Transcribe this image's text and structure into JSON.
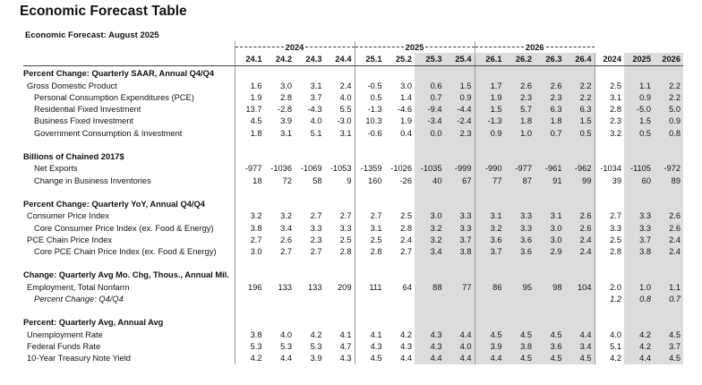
{
  "header": {
    "title": "Economic Forecast Table",
    "subtitle": "Economic Forecast: August 2025"
  },
  "table": {
    "year_groups": [
      "2024",
      "2025",
      "2026"
    ],
    "columns": [
      "24.1",
      "24.2",
      "24.3",
      "24.4",
      "25.1",
      "25.2",
      "25.3",
      "25.4",
      "26.1",
      "26.2",
      "26.3",
      "26.4",
      "2024",
      "2025",
      "2026"
    ],
    "sections": [
      {
        "title": "Percent Change: Quarterly SAAR, Annual Q4/Q4",
        "rows": [
          {
            "label": "Gross Domestic Product",
            "values": [
              "1.6",
              "3.0",
              "3.1",
              "2.4",
              "-0.5",
              "3.0",
              "0.6",
              "1.5",
              "1.7",
              "2.6",
              "2.6",
              "2.2",
              "2.5",
              "1.1",
              "2.2"
            ]
          },
          {
            "label": "Personal Consumption Expenditures (PCE)",
            "values": [
              "1.9",
              "2.8",
              "3.7",
              "4.0",
              "0.5",
              "1.4",
              "0.7",
              "0.9",
              "1.9",
              "2.3",
              "2.3",
              "2.2",
              "3.1",
              "0.9",
              "2.2"
            ]
          },
          {
            "label": "Residential Fixed Investment",
            "values": [
              "13.7",
              "-2.8",
              "-4.3",
              "5.5",
              "-1.3",
              "-4.6",
              "-9.4",
              "-4.4",
              "1.5",
              "5.7",
              "6.3",
              "6.3",
              "2.8",
              "-5.0",
              "5.0"
            ]
          },
          {
            "label": "Business Fixed Investment",
            "values": [
              "4.5",
              "3.9",
              "4.0",
              "-3.0",
              "10.3",
              "1.9",
              "-3.4",
              "-2.4",
              "-1.3",
              "1.8",
              "1.8",
              "1.5",
              "2.3",
              "1.5",
              "0.9"
            ]
          },
          {
            "label": "Government Consumption & Investment",
            "values": [
              "1.8",
              "3.1",
              "5.1",
              "3.1",
              "-0.6",
              "0.4",
              "0.0",
              "2.3",
              "0.9",
              "1.0",
              "0.7",
              "0.5",
              "3.2",
              "0.5",
              "0.8"
            ]
          }
        ]
      },
      {
        "title": "Billions of Chained 2017$",
        "rows": [
          {
            "label": "Net Exports",
            "values": [
              "-977",
              "-1036",
              "-1069",
              "-1053",
              "-1359",
              "-1026",
              "-1035",
              "-999",
              "-990",
              "-977",
              "-961",
              "-962",
              "-1034",
              "-1105",
              "-972"
            ]
          },
          {
            "label": "Change in Business Inventories",
            "values": [
              "18",
              "72",
              "58",
              "9",
              "160",
              "-26",
              "40",
              "67",
              "77",
              "87",
              "91",
              "99",
              "39",
              "60",
              "89"
            ]
          }
        ]
      },
      {
        "title": "Percent Change: Quarterly YoY, Annual Q4/Q4",
        "rows": [
          {
            "label": "Consumer Price Index",
            "values": [
              "3.2",
              "3.2",
              "2.7",
              "2.7",
              "2.7",
              "2.5",
              "3.0",
              "3.3",
              "3.1",
              "3.3",
              "3.1",
              "2.6",
              "2.7",
              "3.3",
              "2.6"
            ]
          },
          {
            "label": "Core Consumer Price Index (ex. Food & Energy)",
            "values": [
              "3.8",
              "3.4",
              "3.3",
              "3.3",
              "3.1",
              "2.8",
              "3.2",
              "3.3",
              "3.2",
              "3.3",
              "3.0",
              "2.6",
              "3.3",
              "3.3",
              "2.6"
            ]
          },
          {
            "label": "PCE Chain Price Index",
            "values": [
              "2.7",
              "2.6",
              "2.3",
              "2.5",
              "2.5",
              "2.4",
              "3.2",
              "3.7",
              "3.6",
              "3.6",
              "3.0",
              "2.4",
              "2.5",
              "3.7",
              "2.4"
            ]
          },
          {
            "label": "Core PCE Chain Price Index (ex. Food & Energy)",
            "values": [
              "3.0",
              "2.7",
              "2.7",
              "2.8",
              "2.8",
              "2.7",
              "3.4",
              "3.8",
              "3.7",
              "3.6",
              "2.9",
              "2.4",
              "2.8",
              "3.8",
              "2.4"
            ]
          }
        ]
      },
      {
        "title": "Change: Quarterly Avg Mo. Chg, Thous., Annual Mil.",
        "rows": [
          {
            "label": "Employment, Total Nonfarm",
            "values": [
              "196",
              "133",
              "133",
              "209",
              "111",
              "64",
              "88",
              "77",
              "86",
              "95",
              "98",
              "104",
              "2.0",
              "1.0",
              "1.1"
            ]
          },
          {
            "label": "Percent Change: Q4/Q4",
            "values": [
              null,
              null,
              null,
              null,
              null,
              null,
              null,
              null,
              null,
              null,
              null,
              null,
              "1.2",
              "0.8",
              "0.7"
            ]
          }
        ]
      },
      {
        "title": "Percent: Quarterly Avg, Annual Avg",
        "rows": [
          {
            "label": "Unemployment Rate",
            "values": [
              "3.8",
              "4.0",
              "4.2",
              "4.1",
              "4.1",
              "4.2",
              "4.3",
              "4.4",
              "4.5",
              "4.5",
              "4.5",
              "4.4",
              "4.0",
              "4.2",
              "4.5"
            ]
          },
          {
            "label": "Federal Funds Rate",
            "values": [
              "5.3",
              "5.3",
              "5.3",
              "4.7",
              "4.3",
              "4.3",
              "4.3",
              "4.0",
              "3.9",
              "3.8",
              "3.6",
              "3.4",
              "5.1",
              "4.2",
              "3.7"
            ]
          },
          {
            "label": "10-Year Treasury Note Yield",
            "values": [
              "4.2",
              "4.4",
              "3.9",
              "4.3",
              "4.5",
              "4.4",
              "4.4",
              "4.4",
              "4.4",
              "4.5",
              "4.5",
              "4.5",
              "4.2",
              "4.4",
              "4.5"
            ]
          }
        ]
      }
    ]
  }
}
